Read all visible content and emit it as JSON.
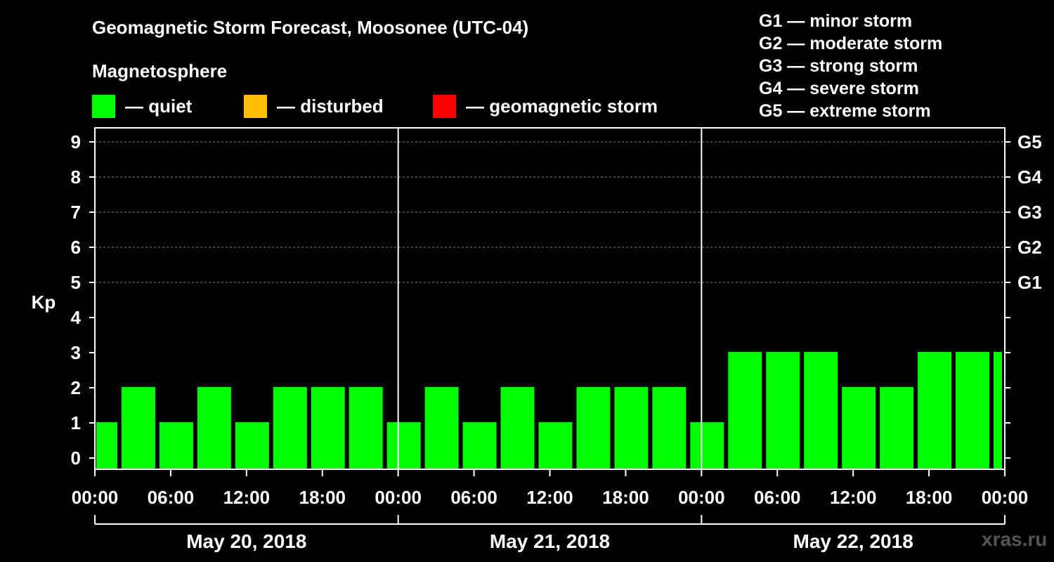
{
  "title": "Geomagnetic Storm Forecast, Moosonee (UTC-04)",
  "subtitle": "Magnetosphere",
  "legend": [
    {
      "label": "— quiet",
      "color": "#00ff00"
    },
    {
      "label": "— disturbed",
      "color": "#ffbf00"
    },
    {
      "label": "— geomagnetic storm",
      "color": "#ff0000"
    }
  ],
  "storm_scale": [
    "G1 — minor storm",
    "G2 — moderate storm",
    "G3 — strong storm",
    "G4 — severe storm",
    "G5 — extreme storm"
  ],
  "watermark": "xras.ru",
  "chart_data": {
    "type": "bar",
    "title": "Geomagnetic Storm Forecast, Moosonee (UTC-04)",
    "ylabel": "Kp",
    "ylim": [
      0,
      9
    ],
    "y_ticks": [
      "0",
      "1",
      "2",
      "3",
      "4",
      "5",
      "6",
      "7",
      "8",
      "9"
    ],
    "right_ticks": [
      {
        "kp": 5,
        "label": "G1"
      },
      {
        "kp": 6,
        "label": "G2"
      },
      {
        "kp": 7,
        "label": "G3"
      },
      {
        "kp": 8,
        "label": "G4"
      },
      {
        "kp": 9,
        "label": "G5"
      }
    ],
    "x_range_hours": [
      0,
      72
    ],
    "x_ticks": [
      "00:00",
      "06:00",
      "12:00",
      "18:00",
      "00:00",
      "06:00",
      "12:00",
      "18:00",
      "00:00",
      "06:00",
      "12:00",
      "18:00",
      "00:00"
    ],
    "days": [
      "May 20, 2018",
      "May 21, 2018",
      "May 22, 2018"
    ],
    "bar_interval_hours": 3,
    "bars": [
      {
        "start_hour": 0,
        "end_hour": 2,
        "kp": 1
      },
      {
        "start_hour": 2,
        "end_hour": 5,
        "kp": 2
      },
      {
        "start_hour": 5,
        "end_hour": 8,
        "kp": 1
      },
      {
        "start_hour": 8,
        "end_hour": 11,
        "kp": 2
      },
      {
        "start_hour": 11,
        "end_hour": 14,
        "kp": 1
      },
      {
        "start_hour": 14,
        "end_hour": 17,
        "kp": 2
      },
      {
        "start_hour": 17,
        "end_hour": 20,
        "kp": 2
      },
      {
        "start_hour": 20,
        "end_hour": 23,
        "kp": 2
      },
      {
        "start_hour": 23,
        "end_hour": 26,
        "kp": 1
      },
      {
        "start_hour": 26,
        "end_hour": 29,
        "kp": 2
      },
      {
        "start_hour": 29,
        "end_hour": 32,
        "kp": 1
      },
      {
        "start_hour": 32,
        "end_hour": 35,
        "kp": 2
      },
      {
        "start_hour": 35,
        "end_hour": 38,
        "kp": 1
      },
      {
        "start_hour": 38,
        "end_hour": 41,
        "kp": 2
      },
      {
        "start_hour": 41,
        "end_hour": 44,
        "kp": 2
      },
      {
        "start_hour": 44,
        "end_hour": 47,
        "kp": 2
      },
      {
        "start_hour": 47,
        "end_hour": 50,
        "kp": 1
      },
      {
        "start_hour": 50,
        "end_hour": 53,
        "kp": 3
      },
      {
        "start_hour": 53,
        "end_hour": 56,
        "kp": 3
      },
      {
        "start_hour": 56,
        "end_hour": 59,
        "kp": 3
      },
      {
        "start_hour": 59,
        "end_hour": 62,
        "kp": 2
      },
      {
        "start_hour": 62,
        "end_hour": 65,
        "kp": 2
      },
      {
        "start_hour": 65,
        "end_hour": 68,
        "kp": 3
      },
      {
        "start_hour": 68,
        "end_hour": 71,
        "kp": 3
      },
      {
        "start_hour": 71,
        "end_hour": 72,
        "kp": 3
      }
    ],
    "quiet_color": "#00ff00",
    "grid": true
  }
}
